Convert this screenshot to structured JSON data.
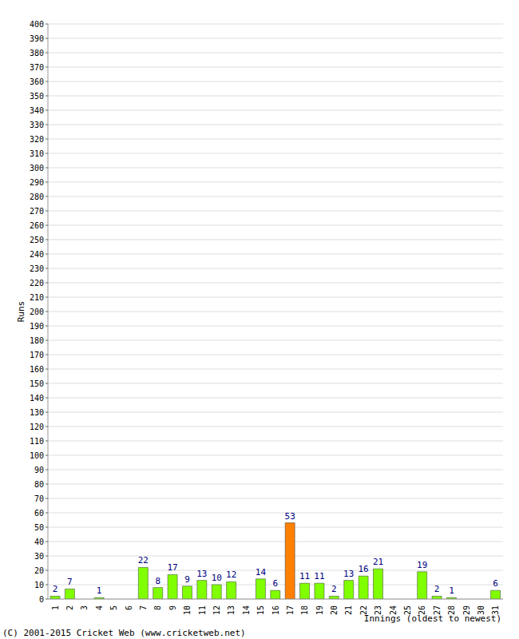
{
  "chart_data": {
    "type": "bar",
    "categories": [
      "1",
      "2",
      "3",
      "4",
      "5",
      "6",
      "7",
      "8",
      "9",
      "10",
      "11",
      "12",
      "13",
      "14",
      "15",
      "16",
      "17",
      "18",
      "19",
      "20",
      "21",
      "22",
      "23",
      "24",
      "25",
      "26",
      "27",
      "28",
      "29",
      "30",
      "31"
    ],
    "values": [
      2,
      7,
      0,
      1,
      0,
      0,
      22,
      8,
      17,
      9,
      13,
      10,
      12,
      0,
      14,
      6,
      53,
      11,
      11,
      2,
      13,
      16,
      21,
      0,
      0,
      19,
      2,
      1,
      0,
      0,
      6
    ],
    "colors": [
      "#80ff00",
      "#80ff00",
      "#80ff00",
      "#80ff00",
      "#80ff00",
      "#80ff00",
      "#80ff00",
      "#80ff00",
      "#80ff00",
      "#80ff00",
      "#80ff00",
      "#80ff00",
      "#80ff00",
      "#80ff00",
      "#80ff00",
      "#80ff00",
      "#ff8000",
      "#80ff00",
      "#80ff00",
      "#80ff00",
      "#80ff00",
      "#80ff00",
      "#80ff00",
      "#80ff00",
      "#80ff00",
      "#80ff00",
      "#80ff00",
      "#80ff00",
      "#80ff00",
      "#80ff00",
      "#80ff00"
    ],
    "ylim": [
      0,
      400
    ],
    "yticks": [
      0,
      10,
      20,
      30,
      40,
      50,
      60,
      70,
      80,
      90,
      100,
      110,
      120,
      130,
      140,
      150,
      160,
      170,
      180,
      190,
      200,
      210,
      220,
      230,
      240,
      250,
      260,
      270,
      280,
      290,
      300,
      310,
      320,
      330,
      340,
      350,
      360,
      370,
      380,
      390,
      400
    ],
    "grid": true,
    "data_labels": true,
    "y_label": "Runs",
    "x_label": "Innings (oldest to newest)",
    "annotations": [
      "(C) 2001-2015 Cricket Web (www.cricketweb.net)"
    ]
  }
}
